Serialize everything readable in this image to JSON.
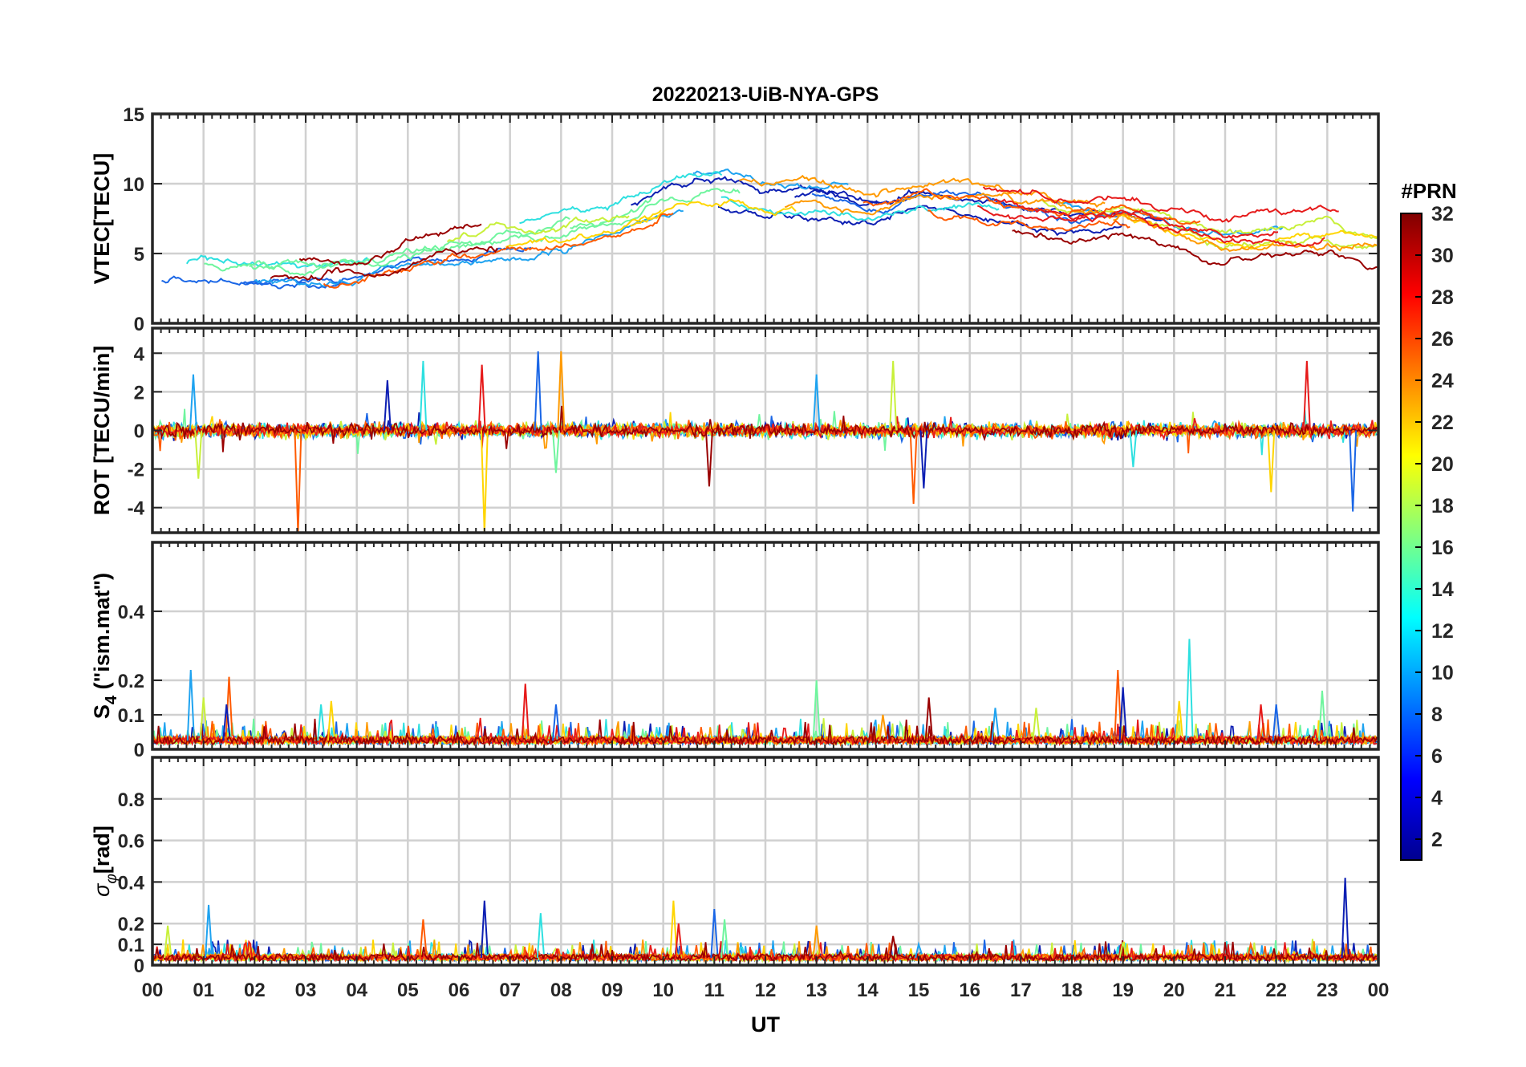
{
  "title": "20220213-UiB-NYA-GPS",
  "chart_data": {
    "type": "line",
    "title": "20220213-UiB-NYA-GPS",
    "xlabel": "UT",
    "xlim": [
      0,
      24
    ],
    "x_tick_labels": [
      "00",
      "01",
      "02",
      "03",
      "04",
      "05",
      "06",
      "07",
      "08",
      "09",
      "10",
      "11",
      "12",
      "13",
      "14",
      "15",
      "16",
      "17",
      "18",
      "19",
      "20",
      "21",
      "22",
      "23",
      "00"
    ],
    "colorbar": {
      "label": "#PRN",
      "range": [
        1,
        32
      ],
      "ticks": [
        "2",
        "4",
        "6",
        "8",
        "10",
        "12",
        "14",
        "16",
        "18",
        "20",
        "22",
        "24",
        "26",
        "28",
        "30",
        "32"
      ],
      "colors": [
        "#00008f",
        "#0000ff",
        "#0080ff",
        "#00ffff",
        "#80ff80",
        "#ffff00",
        "#ff8000",
        "#ff0000",
        "#800000"
      ]
    },
    "series_colors": [
      "#0d1fb3",
      "#1a66e6",
      "#1fa3f0",
      "#2ee0e0",
      "#6ff59e",
      "#c8f03a",
      "#ffd500",
      "#ff9a00",
      "#ff5a00",
      "#e61a1a",
      "#990000"
    ],
    "panels": [
      {
        "id": "vtec",
        "ylabel": "VTEC[TECU]",
        "ylim": [
          0,
          15
        ],
        "y_ticks": [
          "0",
          "5",
          "10",
          "15"
        ],
        "trend": [
          [
            0,
            3.5
          ],
          [
            1,
            3.8
          ],
          [
            2,
            3.6
          ],
          [
            3,
            3.5
          ],
          [
            4,
            3.8
          ],
          [
            5,
            4.8
          ],
          [
            6,
            5.5
          ],
          [
            7,
            6.0
          ],
          [
            8,
            6.5
          ],
          [
            9,
            7.2
          ],
          [
            10,
            8.8
          ],
          [
            11,
            9.2
          ],
          [
            12,
            8.6
          ],
          [
            13,
            8.9
          ],
          [
            14,
            8.1
          ],
          [
            15,
            8.9
          ],
          [
            16,
            8.6
          ],
          [
            17,
            8.1
          ],
          [
            18,
            7.6
          ],
          [
            19,
            7.9
          ],
          [
            20,
            6.9
          ],
          [
            21,
            5.6
          ],
          [
            22,
            6.2
          ],
          [
            23,
            6.4
          ],
          [
            24,
            5.8
          ]
        ],
        "spread": 1.6
      },
      {
        "id": "rot",
        "ylabel": "ROT [TECU/min]",
        "ylim": [
          -5.3,
          5.3
        ],
        "y_ticks": [
          "-4",
          "-2",
          "0",
          "2",
          "4"
        ],
        "noise": 0.35,
        "spikes": [
          [
            0.8,
            2.9
          ],
          [
            0.9,
            -2.5
          ],
          [
            2.85,
            -5.3
          ],
          [
            4.6,
            2.6
          ],
          [
            5.3,
            3.6
          ],
          [
            6.5,
            -5.3
          ],
          [
            6.45,
            3.4
          ],
          [
            7.55,
            4.1
          ],
          [
            7.9,
            -2.2
          ],
          [
            8.0,
            4.1
          ],
          [
            10.9,
            -2.9
          ],
          [
            13.0,
            2.9
          ],
          [
            14.5,
            3.6
          ],
          [
            14.9,
            -3.8
          ],
          [
            15.1,
            -3.0
          ],
          [
            19.2,
            -1.9
          ],
          [
            21.9,
            -3.2
          ],
          [
            22.6,
            3.6
          ],
          [
            23.5,
            -4.2
          ]
        ]
      },
      {
        "id": "s4",
        "ylabel": "S4 (\"ism.mat\")",
        "ylim": [
          0,
          0.6
        ],
        "y_ticks": [
          "0",
          "0.1",
          "0.2",
          "0.4"
        ],
        "baseline": 0.025,
        "spikes": [
          [
            0.75,
            0.23
          ],
          [
            1.0,
            0.15
          ],
          [
            1.5,
            0.21
          ],
          [
            1.45,
            0.13
          ],
          [
            3.3,
            0.13
          ],
          [
            3.5,
            0.14
          ],
          [
            7.3,
            0.19
          ],
          [
            7.9,
            0.13
          ],
          [
            13.0,
            0.2
          ],
          [
            14.3,
            0.1
          ],
          [
            15.2,
            0.15
          ],
          [
            16.5,
            0.12
          ],
          [
            17.3,
            0.12
          ],
          [
            18.9,
            0.23
          ],
          [
            19.0,
            0.18
          ],
          [
            20.3,
            0.32
          ],
          [
            20.1,
            0.14
          ],
          [
            21.7,
            0.13
          ],
          [
            22.0,
            0.13
          ],
          [
            22.9,
            0.17
          ]
        ]
      },
      {
        "id": "sigma_phi",
        "ylabel": "σφ[rad]",
        "ylim": [
          0,
          1.0
        ],
        "y_ticks": [
          "0",
          "0.1",
          "0.2",
          "0.4",
          "0.6",
          "0.8"
        ],
        "baseline": 0.035,
        "spikes": [
          [
            1.1,
            0.29
          ],
          [
            0.3,
            0.19
          ],
          [
            5.3,
            0.22
          ],
          [
            6.5,
            0.31
          ],
          [
            7.6,
            0.25
          ],
          [
            10.2,
            0.31
          ],
          [
            10.3,
            0.2
          ],
          [
            11.0,
            0.27
          ],
          [
            11.2,
            0.22
          ],
          [
            13.0,
            0.19
          ],
          [
            14.5,
            0.14
          ],
          [
            15.0,
            0.1
          ],
          [
            19.0,
            0.11
          ],
          [
            21.5,
            0.1
          ],
          [
            23.35,
            0.42
          ]
        ]
      }
    ]
  }
}
